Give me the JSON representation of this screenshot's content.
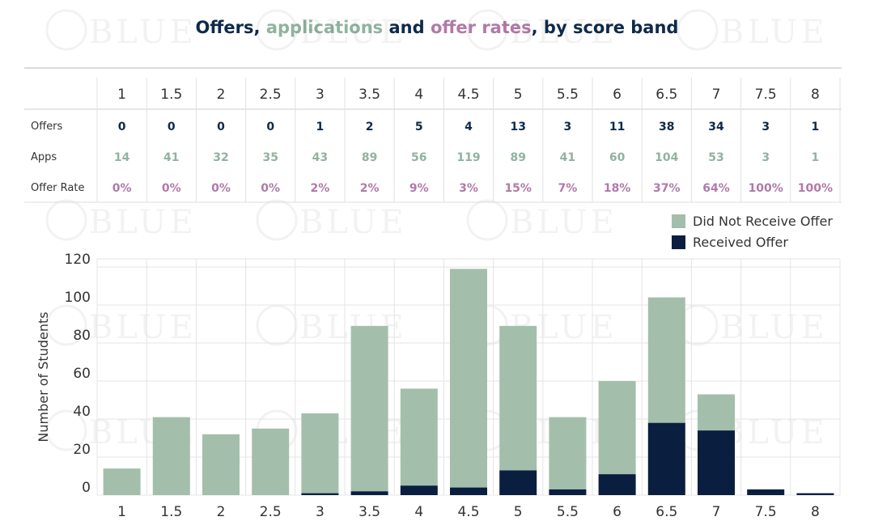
{
  "title": {
    "part1": "Offers, ",
    "part2": "applications",
    "part3": " and ",
    "part4": "offer rates",
    "part5": ", by score band"
  },
  "watermark": "BLUE",
  "colors": {
    "offers": "#0f2a4a",
    "apps": "#8fb39f",
    "rate": "#b07aa8",
    "no_offer_bar": "#a3bfac",
    "offer_bar": "#0a1f3f",
    "grid": "#e4e4e4"
  },
  "table": {
    "row_labels": [
      "Offers",
      "Apps",
      "Offer Rate"
    ],
    "bands": [
      "1",
      "1.5",
      "2",
      "2.5",
      "3",
      "3.5",
      "4",
      "4.5",
      "5",
      "5.5",
      "6",
      "6.5",
      "7",
      "7.5",
      "8"
    ],
    "offers": [
      "0",
      "0",
      "0",
      "0",
      "1",
      "2",
      "5",
      "4",
      "13",
      "3",
      "11",
      "38",
      "34",
      "3",
      "1"
    ],
    "apps": [
      "14",
      "41",
      "32",
      "35",
      "43",
      "89",
      "56",
      "119",
      "89",
      "41",
      "60",
      "104",
      "53",
      "3",
      "1"
    ],
    "offer_rate": [
      "0%",
      "0%",
      "0%",
      "0%",
      "2%",
      "2%",
      "9%",
      "3%",
      "15%",
      "7%",
      "18%",
      "37%",
      "64%",
      "100%",
      "100%"
    ]
  },
  "chart_data": {
    "type": "bar",
    "stacked": true,
    "categories": [
      "1",
      "1.5",
      "2",
      "2.5",
      "3",
      "3.5",
      "4",
      "4.5",
      "5",
      "5.5",
      "6",
      "6.5",
      "7",
      "7.5",
      "8"
    ],
    "series": [
      {
        "name": "Received Offer",
        "values": [
          0,
          0,
          0,
          0,
          1,
          2,
          5,
          4,
          13,
          3,
          11,
          38,
          34,
          3,
          1
        ]
      },
      {
        "name": "Did Not Receive Offer",
        "values": [
          14,
          41,
          32,
          35,
          42,
          87,
          51,
          115,
          76,
          38,
          49,
          66,
          19,
          0,
          0
        ]
      }
    ],
    "ylabel": "Number of Students",
    "ylim": [
      0,
      120
    ],
    "yticks": [
      0,
      20,
      40,
      60,
      80,
      100,
      120
    ],
    "legend": {
      "position": "top-right",
      "entries": [
        "Did Not Receive Offer",
        "Received Offer"
      ]
    },
    "grid": true
  }
}
